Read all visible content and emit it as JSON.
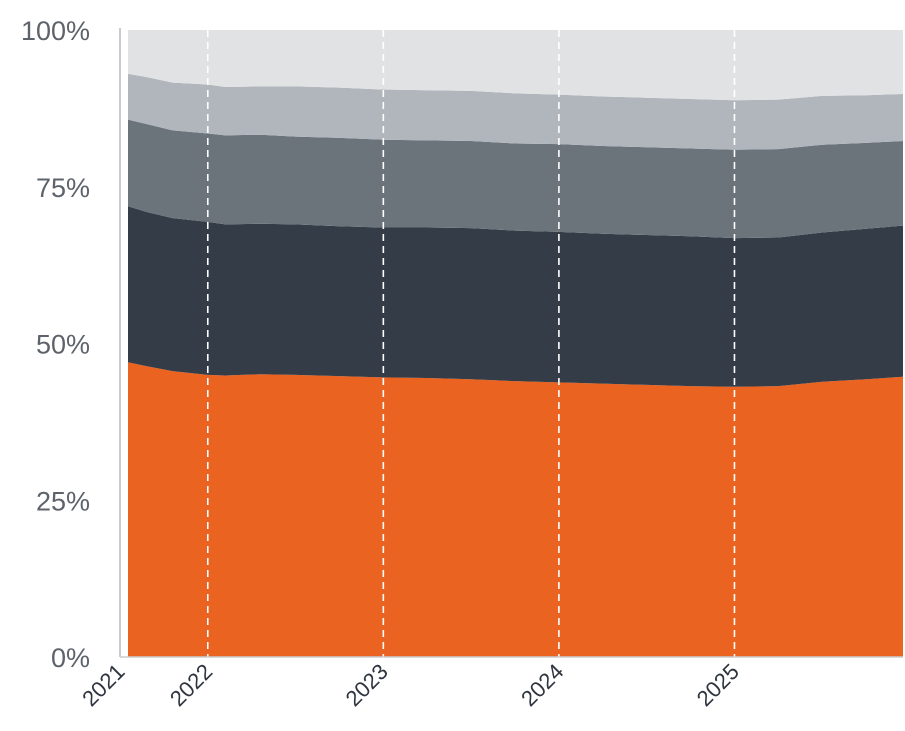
{
  "chart_data": {
    "type": "area",
    "stacked": true,
    "normalized_percent": true,
    "title": "",
    "xlabel": "",
    "ylabel": "",
    "ylim": [
      0,
      100
    ],
    "xlim": [
      2021,
      2025.46
    ],
    "y_ticks": [
      0,
      25,
      50,
      75,
      100
    ],
    "y_tick_labels": [
      "0%",
      "25%",
      "50%",
      "75%",
      "100%"
    ],
    "x_ticks": [
      2021,
      2021.5,
      2022.5,
      2023.5,
      2024.5
    ],
    "x_tick_labels": [
      "2021",
      "2022",
      "2023",
      "2024",
      "2025"
    ],
    "x_tick_label_rotation_deg": -45,
    "x": [
      2021,
      2021.15,
      2021.3,
      2021.5,
      2021.6,
      2021.8,
      2022.0,
      2022.25,
      2022.5,
      2022.75,
      2023.0,
      2023.25,
      2023.5,
      2023.75,
      2024.0,
      2024.25,
      2024.5,
      2024.75,
      2025.0,
      2025.25,
      2025.46
    ],
    "grid": {
      "vertical_dashed": true,
      "horizontal": false
    },
    "legend": "none",
    "series": [
      {
        "color": "#ea6320",
        "values": [
          47.0,
          46.4,
          45.6,
          45.0,
          44.9,
          45.1,
          45.0,
          44.8,
          44.6,
          44.5,
          44.3,
          44.0,
          43.8,
          43.6,
          43.4,
          43.2,
          43.1,
          43.2,
          43.9,
          44.3,
          44.7
        ]
      },
      {
        "color": "#343c47",
        "values": [
          24.9,
          24.6,
          24.4,
          24.4,
          24.1,
          24.0,
          24.0,
          23.9,
          23.9,
          24.0,
          24.1,
          24.0,
          24.0,
          23.9,
          23.9,
          23.9,
          23.7,
          23.7,
          23.8,
          24.0,
          24.1
        ]
      },
      {
        "color": "#6b737b",
        "values": [
          13.8,
          14.0,
          14.0,
          14.1,
          14.2,
          14.2,
          14.0,
          14.1,
          14.0,
          13.9,
          13.9,
          13.9,
          14.0,
          14.0,
          14.0,
          14.0,
          14.1,
          14.1,
          14.0,
          13.7,
          13.5
        ]
      },
      {
        "color": "#b1b6bc",
        "values": [
          7.3,
          7.5,
          7.6,
          7.8,
          7.7,
          7.7,
          8.0,
          8.0,
          8.0,
          8.0,
          8.0,
          8.0,
          7.9,
          7.9,
          7.9,
          7.9,
          7.9,
          7.9,
          7.8,
          7.6,
          7.5
        ]
      },
      {
        "color": "#e1e2e4",
        "values": [
          7.0,
          7.5,
          8.4,
          8.7,
          9.1,
          9.0,
          9.0,
          9.2,
          9.5,
          9.6,
          9.7,
          10.1,
          10.3,
          10.6,
          10.8,
          11.0,
          11.2,
          11.1,
          10.5,
          10.4,
          10.2
        ]
      }
    ]
  }
}
